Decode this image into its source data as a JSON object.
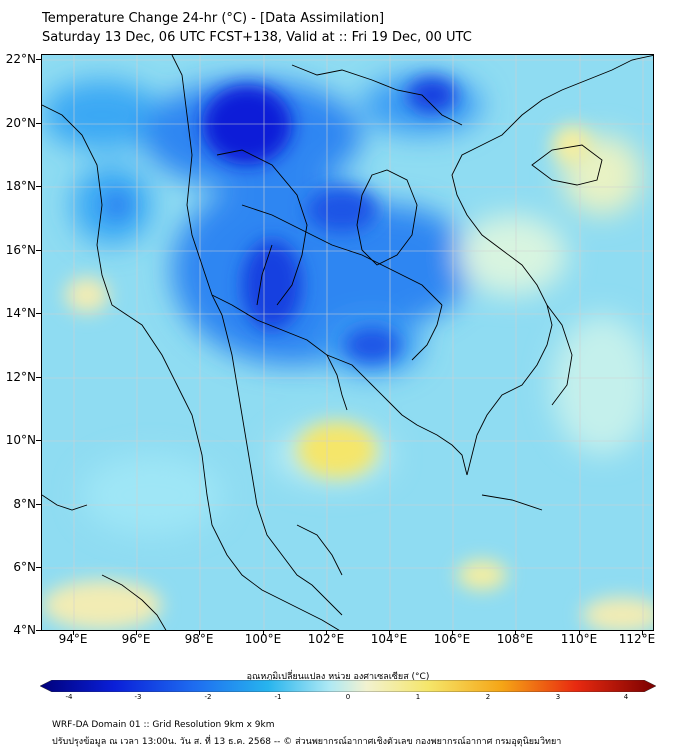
{
  "title": {
    "line1": "Temperature Change 24-hr (°C) - [Data Assimilation]",
    "line2": "Saturday 13 Dec, 06 UTC FCST+138, Valid at :: Fri 19 Dec, 00 UTC"
  },
  "map": {
    "lat_labels": [
      "22°N",
      "20°N",
      "18°N",
      "16°N",
      "14°N",
      "12°N",
      "10°N",
      "8°N",
      "6°N",
      "4°N"
    ],
    "lon_labels": [
      "94°E",
      "96°E",
      "98°E",
      "100°E",
      "102°E",
      "104°E",
      "106°E",
      "108°E",
      "110°E",
      "112°E"
    ],
    "extent": {
      "lon_min": 93.0,
      "lon_max": 112.4,
      "lat_min": 4.0,
      "lat_max": 22.2
    },
    "colors": {
      "background_light_blue": "#8fdcf2",
      "cool_blue": "#1e6cf0",
      "deep_blue": "#0a1fd8",
      "warm_yellow": "#f5e66a",
      "coastline": "#000000"
    }
  },
  "colorbar": {
    "title": "อุณหภูมิเปลี่ยนแปลง หน่วย องศาเซลเซียส (°C)",
    "ticks": [
      "-4",
      "-3",
      "-2",
      "-1",
      "0",
      "1",
      "2",
      "3",
      "4"
    ],
    "range": [
      -4,
      4
    ]
  },
  "footer": {
    "line1": "WRF-DA Domain 01 :: Grid Resolution 9km x 9km",
    "line2": "ปรับปรุงข้อมูล ณ เวลา 13:00น. วัน ส. ที่ 13 ธ.ค. 2568 -- © ส่วนพยากรณ์อากาศเชิงตัวเลข กองพยากรณ์อากาศ กรมอุตุนิยมวิทยา"
  }
}
